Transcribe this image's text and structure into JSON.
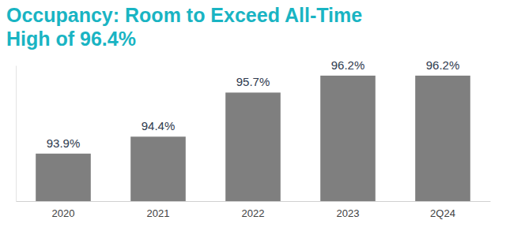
{
  "chart_data": {
    "type": "bar",
    "title": "Occupancy: Room to Exceed All-Time High of 96.4%",
    "categories": [
      "2020",
      "2021",
      "2022",
      "2023",
      "2Q24"
    ],
    "values": [
      93.9,
      94.4,
      95.7,
      96.2,
      96.2
    ],
    "value_labels": [
      "93.9%",
      "94.4%",
      "95.7%",
      "96.2%",
      "96.2%"
    ],
    "color": "#7f7f7f",
    "ylim": [
      92.5,
      96.5
    ],
    "yticks": [],
    "grid": false,
    "data_labels": true,
    "tick_labels": "x"
  }
}
